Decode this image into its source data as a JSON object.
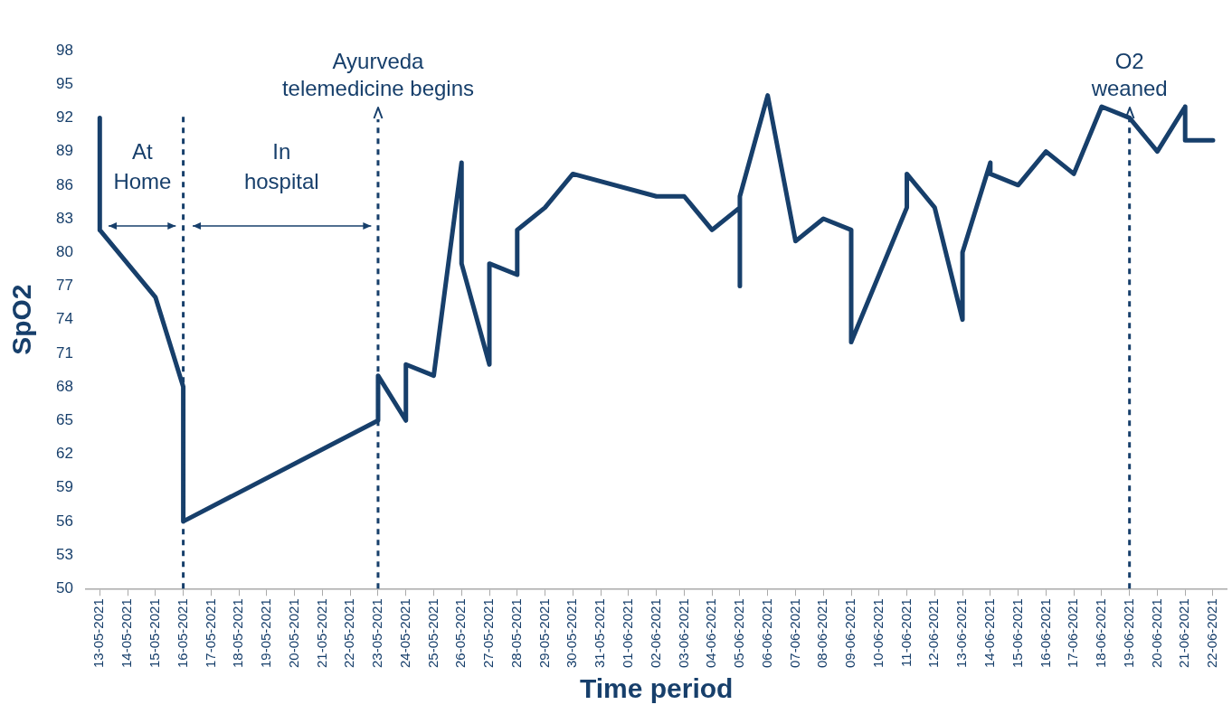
{
  "chart_data": {
    "type": "line",
    "xlabel": "Time period",
    "ylabel": "SpO2",
    "x": [
      "2021-05-13",
      "2021-05-13",
      "2021-05-15",
      "2021-05-16",
      "2021-05-16",
      "2021-05-23",
      "2021-05-23",
      "2021-05-24",
      "2021-05-24",
      "2021-05-25",
      "2021-05-26",
      "2021-05-26",
      "2021-05-27",
      "2021-05-27",
      "2021-05-28",
      "2021-05-28",
      "2021-05-29",
      "2021-05-30",
      "2021-06-02",
      "2021-06-03",
      "2021-06-04",
      "2021-06-05",
      "2021-06-05",
      "2021-06-05",
      "2021-06-06",
      "2021-06-07",
      "2021-06-08",
      "2021-06-09",
      "2021-06-09",
      "2021-06-11",
      "2021-06-11",
      "2021-06-12",
      "2021-06-13",
      "2021-06-13",
      "2021-06-14",
      "2021-06-14",
      "2021-06-15",
      "2021-06-16",
      "2021-06-17",
      "2021-06-18",
      "2021-06-19",
      "2021-06-20",
      "2021-06-21",
      "2021-06-21",
      "2021-06-22"
    ],
    "series": [
      {
        "color": "#173f6b",
        "values": [
          92,
          82,
          76,
          68,
          56,
          65,
          69,
          65,
          70,
          69,
          88,
          79,
          70,
          79,
          78,
          82,
          84,
          87,
          85,
          85,
          82,
          84,
          77,
          85,
          94,
          81,
          83,
          82,
          72,
          84,
          87,
          84,
          74,
          80,
          88,
          87,
          86,
          89,
          87,
          93,
          92,
          89,
          93,
          90,
          90
        ]
      }
    ],
    "xlim": [
      "2021-05-12T12:00",
      "2021-06-22T12:00"
    ],
    "xticks": [
      {
        "value": "2021-05-13",
        "label": "13-05-2021"
      },
      {
        "value": "2021-05-14",
        "label": "14-05-2021"
      },
      {
        "value": "2021-05-15",
        "label": "15-05-2021"
      },
      {
        "value": "2021-05-16",
        "label": "16-05-2021"
      },
      {
        "value": "2021-05-17",
        "label": "17-05-2021"
      },
      {
        "value": "2021-05-18",
        "label": "18-05-2021"
      },
      {
        "value": "2021-05-19",
        "label": "19-05-2021"
      },
      {
        "value": "2021-05-20",
        "label": "20-05-2021"
      },
      {
        "value": "2021-05-21",
        "label": "21-05-2021"
      },
      {
        "value": "2021-05-22",
        "label": "22-05-2021"
      },
      {
        "value": "2021-05-23",
        "label": "23-05-2021"
      },
      {
        "value": "2021-05-24",
        "label": "24-05-2021"
      },
      {
        "value": "2021-05-25",
        "label": "25-05-2021"
      },
      {
        "value": "2021-05-26",
        "label": "26-05-2021"
      },
      {
        "value": "2021-05-27",
        "label": "27-05-2021"
      },
      {
        "value": "2021-05-28",
        "label": "28-05-2021"
      },
      {
        "value": "2021-05-29",
        "label": "29-05-2021"
      },
      {
        "value": "2021-05-30",
        "label": "30-05-2021"
      },
      {
        "value": "2021-05-31",
        "label": "31-05-2021"
      },
      {
        "value": "2021-06-01",
        "label": "01-06-2021"
      },
      {
        "value": "2021-06-02",
        "label": "02-06-2021"
      },
      {
        "value": "2021-06-03",
        "label": "03-06-2021"
      },
      {
        "value": "2021-06-04",
        "label": "04-06-2021"
      },
      {
        "value": "2021-06-05",
        "label": "05-06-2021"
      },
      {
        "value": "2021-06-06",
        "label": "06-06-2021"
      },
      {
        "value": "2021-06-07",
        "label": "07-06-2021"
      },
      {
        "value": "2021-06-08",
        "label": "08-06-2021"
      },
      {
        "value": "2021-06-09",
        "label": "09-06-2021"
      },
      {
        "value": "2021-06-10",
        "label": "10-06-2021"
      },
      {
        "value": "2021-06-11",
        "label": "11-06-2021"
      },
      {
        "value": "2021-06-12",
        "label": "12-06-2021"
      },
      {
        "value": "2021-06-13",
        "label": "13-06-2021"
      },
      {
        "value": "2021-06-14",
        "label": "14-06-2021"
      },
      {
        "value": "2021-06-15",
        "label": "15-06-2021"
      },
      {
        "value": "2021-06-16",
        "label": "16-06-2021"
      },
      {
        "value": "2021-06-17",
        "label": "17-06-2021"
      },
      {
        "value": "2021-06-18",
        "label": "18-06-2021"
      },
      {
        "value": "2021-06-19",
        "label": "19-06-2021"
      },
      {
        "value": "2021-06-20",
        "label": "20-06-2021"
      },
      {
        "value": "2021-06-21",
        "label": "21-06-2021"
      },
      {
        "value": "2021-06-22",
        "label": "22-06-2021"
      }
    ],
    "ylim": [
      50,
      98
    ],
    "yticks": [
      50,
      53,
      56,
      59,
      62,
      65,
      68,
      71,
      74,
      77,
      80,
      83,
      86,
      89,
      92,
      95,
      98
    ],
    "grid": false,
    "legend": false,
    "marker": "none",
    "line_style": "solid",
    "ref_lines": [
      {
        "axis": "x",
        "value": "2021-05-16",
        "color": "#173f6b",
        "line_style": "dashed"
      },
      {
        "axis": "x",
        "value": "2021-05-23",
        "label": "Ayurveda\ntelemedicine begins",
        "color": "#173f6b",
        "line_style": "dashed"
      },
      {
        "axis": "x",
        "value": "2021-06-19",
        "label": "O2\nweaned",
        "color": "#173f6b",
        "line_style": "dashed"
      }
    ],
    "annotations": [
      "At\nHome",
      "In\nhospital"
    ]
  }
}
